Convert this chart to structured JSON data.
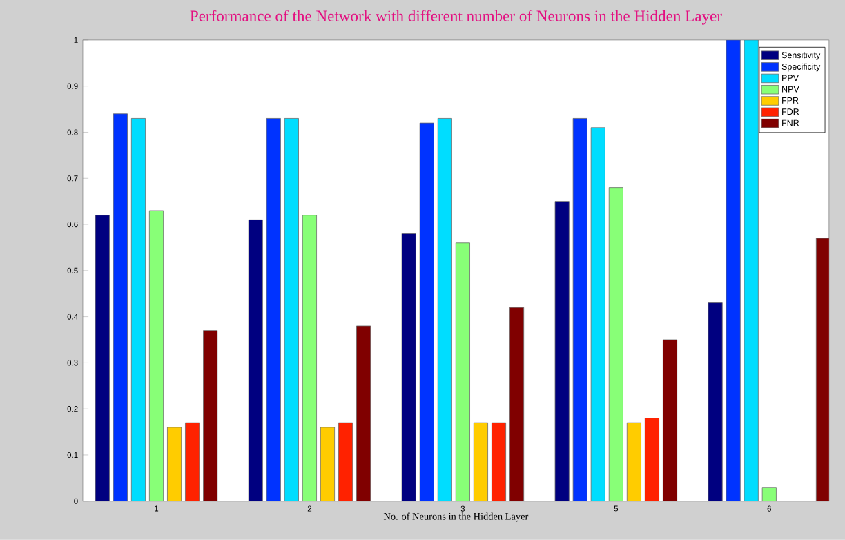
{
  "chart_data": {
    "type": "bar",
    "title": "Performance of the Network with different number of Neurons in the Hidden Layer",
    "xlabel": "No. of Neurons in the Hidden Layer",
    "categories": [
      "1",
      "2",
      "3",
      "5",
      "6"
    ],
    "series": [
      {
        "name": "Sensitivity",
        "color": "#000080",
        "values": [
          0.62,
          0.61,
          0.58,
          0.65,
          0.43
        ]
      },
      {
        "name": "Specificity",
        "color": "#0033ff",
        "values": [
          0.84,
          0.83,
          0.82,
          0.83,
          1.0
        ]
      },
      {
        "name": "PPV",
        "color": "#00ddff",
        "values": [
          0.83,
          0.83,
          0.83,
          0.81,
          1.0
        ]
      },
      {
        "name": "NPV",
        "color": "#88ff77",
        "values": [
          0.63,
          0.62,
          0.56,
          0.68,
          0.03
        ]
      },
      {
        "name": "FPR",
        "color": "#ffcc00",
        "values": [
          0.16,
          0.16,
          0.17,
          0.17,
          0
        ]
      },
      {
        "name": "FDR",
        "color": "#ff2200",
        "values": [
          0.17,
          0.17,
          0.17,
          0.18,
          0
        ]
      },
      {
        "name": "FNR",
        "color": "#800000",
        "values": [
          0.37,
          0.38,
          0.42,
          0.35,
          0.57
        ]
      }
    ],
    "ylim": [
      0,
      1
    ],
    "yticks": [
      0,
      0.1,
      0.2,
      0.3,
      0.4,
      0.5,
      0.6,
      0.7,
      0.8,
      0.9,
      1
    ],
    "legend": "top right",
    "grid": false
  }
}
